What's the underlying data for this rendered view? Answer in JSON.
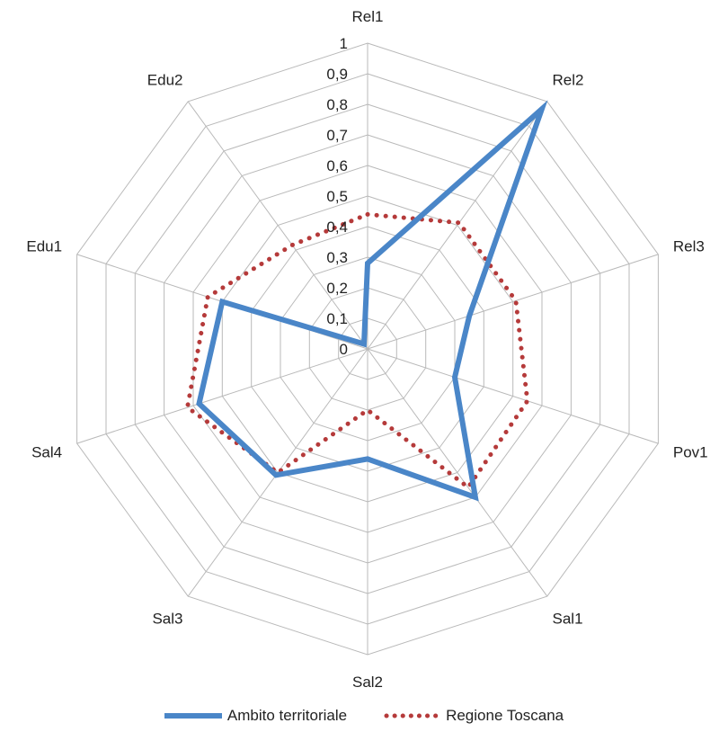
{
  "chart_data": {
    "type": "radar",
    "categories": [
      "Rel1",
      "Rel2",
      "Rel3",
      "Pov1",
      "Sal1",
      "Sal2",
      "Sal3",
      "Sal4",
      "Edu1",
      "Edu2"
    ],
    "rlim": [
      0,
      1
    ],
    "ticks": [
      "0",
      "0,1",
      "0,2",
      "0,3",
      "0,4",
      "0,5",
      "0,6",
      "0,7",
      "0,8",
      "0,9",
      "1"
    ],
    "tick_values": [
      0,
      0.1,
      0.2,
      0.3,
      0.4,
      0.5,
      0.6,
      0.7,
      0.8,
      0.9,
      1
    ],
    "grid": true,
    "legend_position": "bottom",
    "series": [
      {
        "name": "Ambito territoriale",
        "color": "#4a86c8",
        "style": "solid",
        "values": [
          0.28,
          0.97,
          0.35,
          0.3,
          0.6,
          0.36,
          0.51,
          0.58,
          0.5,
          0.02
        ]
      },
      {
        "name": "Regione Toscana",
        "color": "#b53a3a",
        "style": "dotted",
        "values": [
          0.44,
          0.51,
          0.51,
          0.55,
          0.56,
          0.2,
          0.5,
          0.62,
          0.55,
          0.42
        ]
      }
    ]
  }
}
